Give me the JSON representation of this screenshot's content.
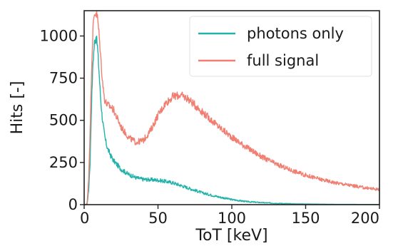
{
  "chart_data": {
    "type": "line",
    "xlabel": "ToT [keV]",
    "ylabel": "Hits [-]",
    "xlim": [
      0,
      200
    ],
    "ylim": [
      0,
      1150
    ],
    "x_ticks": [
      0,
      50,
      100,
      150,
      200
    ],
    "y_ticks": [
      0,
      250,
      500,
      750,
      1000
    ],
    "grid": false,
    "legend_position": "top-right",
    "series": [
      {
        "name": "photons only",
        "color": "#22b2aa",
        "x": [
          0,
          1,
          2,
          3,
          4,
          5,
          6,
          7,
          8,
          9,
          10,
          11,
          12,
          13,
          14,
          15,
          16,
          18,
          20,
          22,
          25,
          30,
          35,
          40,
          45,
          50,
          55,
          60,
          65,
          70,
          75,
          80,
          90,
          100,
          110,
          120,
          130,
          140,
          150,
          160,
          170,
          180,
          190,
          200
        ],
        "y": [
          0,
          0,
          5,
          80,
          250,
          600,
          850,
          960,
          1000,
          940,
          800,
          650,
          540,
          460,
          400,
          360,
          330,
          290,
          260,
          240,
          210,
          180,
          160,
          150,
          148,
          145,
          138,
          130,
          115,
          100,
          85,
          70,
          48,
          30,
          18,
          12,
          8,
          5,
          4,
          3,
          2,
          2,
          1,
          1
        ]
      },
      {
        "name": "full signal",
        "color": "#f07f72",
        "x": [
          0,
          1,
          2,
          3,
          4,
          5,
          6,
          7,
          8,
          9,
          10,
          11,
          12,
          13,
          14,
          15,
          16,
          18,
          20,
          22,
          25,
          30,
          35,
          40,
          45,
          50,
          55,
          60,
          65,
          70,
          75,
          80,
          90,
          100,
          110,
          120,
          130,
          140,
          150,
          160,
          170,
          180,
          190,
          200
        ],
        "y": [
          0,
          0,
          10,
          150,
          420,
          800,
          1050,
          1130,
          1140,
          1110,
          1020,
          900,
          780,
          680,
          620,
          600,
          590,
          580,
          560,
          520,
          460,
          400,
          370,
          380,
          440,
          530,
          600,
          640,
          650,
          630,
          590,
          550,
          470,
          400,
          340,
          285,
          240,
          205,
          175,
          150,
          130,
          115,
          100,
          90
        ]
      }
    ]
  }
}
